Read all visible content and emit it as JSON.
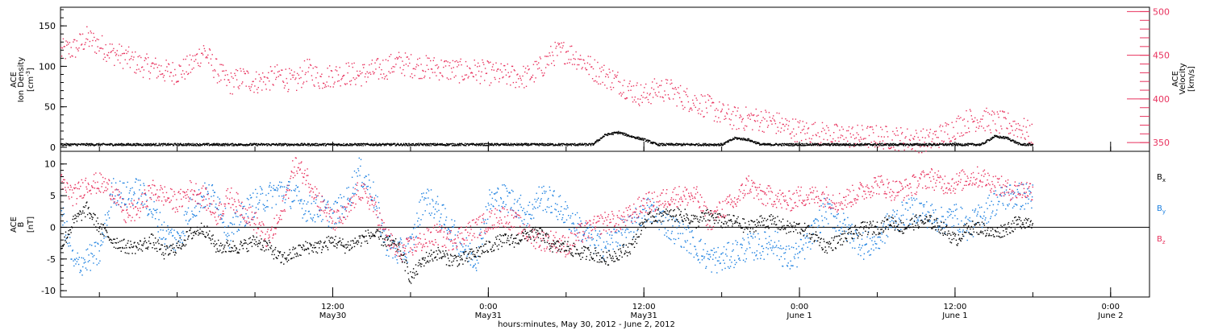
{
  "colors": {
    "black": "#000000",
    "pink": "#e8325e",
    "blue": "#1a7fe0"
  },
  "chart_data": [
    {
      "type": "scatter",
      "title": "",
      "ylabel": {
        "lines": [
          "ACE",
          "Ion Density"
        ],
        "units": "[cm",
        "units_sup": "-3",
        "units_end": "]"
      },
      "ylabel_right": {
        "lines": [
          "ACE",
          "Velocity"
        ],
        "units": "[km/s]"
      },
      "xlim": [
        -9,
        75
      ],
      "ylim": [
        -5,
        173
      ],
      "ylim_right": [
        340,
        505
      ],
      "yticks": [
        0,
        50,
        100,
        150
      ],
      "yticks_right": [
        350,
        400,
        450,
        500
      ],
      "series": [
        {
          "color": "pink",
          "axis": "right",
          "x": [
            -9,
            -8,
            -7,
            -6,
            -5,
            -4,
            -3,
            -2,
            -1,
            0,
            1,
            2,
            3,
            4,
            5,
            6,
            7,
            8,
            9,
            10,
            11,
            12,
            13,
            14,
            15,
            16,
            17,
            18,
            19,
            20,
            21,
            22,
            23,
            24,
            25,
            26,
            27,
            28,
            29,
            30,
            31,
            32,
            33,
            34,
            35,
            36,
            37,
            38,
            39,
            40,
            41,
            42,
            43,
            44,
            45,
            46,
            47,
            48,
            49,
            50,
            51,
            52,
            53,
            54,
            55,
            56,
            57,
            58,
            59,
            60,
            61,
            62,
            63,
            64,
            65,
            66
          ],
          "y": [
            455,
            458,
            470,
            462,
            453,
            448,
            440,
            437,
            432,
            431,
            438,
            456,
            433,
            418,
            425,
            420,
            423,
            428,
            418,
            434,
            424,
            428,
            430,
            428,
            432,
            436,
            442,
            439,
            437,
            436,
            434,
            432,
            433,
            430,
            428,
            426,
            426,
            436,
            452,
            455,
            446,
            435,
            427,
            420,
            410,
            404,
            412,
            410,
            402,
            397,
            391,
            383,
            378,
            378,
            377,
            374,
            368,
            364,
            362,
            360,
            358,
            358,
            357,
            357,
            356,
            355,
            353,
            353,
            360,
            368,
            376,
            378,
            374,
            372,
            368,
            358
          ],
          "spread": 14
        }
      ]
    },
    {
      "type": "scatter",
      "ylabel": {
        "lines": [
          "ACE",
          "B"
        ],
        "units": "[nT]"
      },
      "xlim": [
        -9,
        75
      ],
      "ylim": [
        -11,
        12
      ],
      "yticks": [
        -10,
        -5,
        0,
        5,
        10
      ],
      "zero_line": true,
      "legend": [
        "B",
        "B",
        "B"
      ],
      "legend_subscripts": [
        "x",
        "y",
        "z"
      ],
      "series": [
        {
          "color": "blue",
          "x": [
            -9,
            -8,
            -7,
            -6,
            -5,
            -4,
            -3,
            -2,
            -1,
            0,
            1,
            2,
            3,
            4,
            5,
            6,
            7,
            8,
            9,
            10,
            11,
            12,
            13,
            14,
            15,
            16,
            17,
            18,
            19,
            20,
            21,
            22,
            23,
            24,
            25,
            26,
            27,
            28,
            29,
            30,
            31,
            32,
            33,
            34,
            35,
            36,
            37,
            38,
            39,
            40,
            41,
            42,
            43,
            44,
            45,
            46,
            47,
            48,
            49,
            50,
            51,
            52,
            53,
            54,
            55,
            56,
            57,
            58,
            59,
            60,
            61,
            62,
            63,
            64,
            65,
            66
          ],
          "y": [
            3,
            -6,
            -5,
            -4,
            6,
            5,
            6,
            3,
            -1,
            -2,
            3,
            5,
            5,
            -1,
            2,
            4,
            5,
            6,
            5,
            3,
            3,
            2,
            4,
            9,
            6,
            -2,
            -4,
            -3,
            5,
            3,
            0,
            -3,
            -5,
            4,
            5,
            4,
            2,
            5,
            4,
            2,
            0,
            -2,
            -3,
            -1,
            0,
            3,
            2,
            0,
            -1,
            -3,
            -5,
            -5,
            -4,
            -3,
            -3,
            -2,
            -5,
            -4,
            -1,
            3,
            1,
            -1,
            -3,
            -2,
            1,
            2,
            3,
            2,
            1,
            2,
            0,
            2,
            4,
            5,
            5,
            5
          ],
          "spread": 2.2
        },
        {
          "color": "pink",
          "x": [
            -9,
            -8,
            -7,
            -6,
            -5,
            -4,
            -3,
            -2,
            -1,
            0,
            1,
            2,
            3,
            4,
            5,
            6,
            7,
            8,
            9,
            10,
            11,
            12,
            13,
            14,
            15,
            16,
            17,
            18,
            19,
            20,
            21,
            22,
            23,
            24,
            25,
            26,
            27,
            28,
            29,
            30,
            31,
            32,
            33,
            34,
            35,
            36,
            37,
            38,
            39,
            40,
            41,
            42,
            43,
            44,
            45,
            46,
            47,
            48,
            49,
            50,
            51,
            52,
            53,
            54,
            55,
            56,
            57,
            58,
            59,
            60,
            61,
            62,
            63,
            64,
            65,
            66
          ],
          "y": [
            7,
            5,
            7,
            7,
            6,
            2,
            3,
            6,
            5,
            4,
            6,
            5,
            2,
            5,
            3,
            1,
            -2,
            2,
            10,
            8,
            4,
            1,
            2,
            6,
            4,
            -1,
            -4,
            -3,
            -2,
            -1,
            -2,
            -1,
            0,
            1,
            2,
            1,
            -1,
            -2,
            -2,
            -3,
            -1,
            0,
            1,
            1,
            2,
            4,
            4,
            5,
            5,
            5,
            1,
            3,
            4,
            7,
            5,
            5,
            4,
            5,
            5,
            5,
            4,
            5,
            6,
            7,
            6,
            6,
            7,
            8,
            7,
            7,
            8,
            8,
            7,
            6,
            6,
            6
          ],
          "spread": 1.7
        },
        {
          "color": "black",
          "x": [
            -9,
            -8,
            -7,
            -6,
            -5,
            -4,
            -3,
            -2,
            -1,
            0,
            1,
            2,
            3,
            4,
            5,
            6,
            7,
            8,
            9,
            10,
            11,
            12,
            13,
            14,
            15,
            16,
            17,
            18,
            19,
            20,
            21,
            22,
            23,
            24,
            25,
            26,
            27,
            28,
            29,
            30,
            31,
            32,
            33,
            34,
            35,
            36,
            37,
            38,
            39,
            40,
            41,
            42,
            43,
            44,
            45,
            46,
            47,
            48,
            49,
            50,
            51,
            52,
            53,
            54,
            55,
            56,
            57,
            58,
            59,
            60,
            61,
            62,
            63,
            64,
            65,
            66
          ],
          "y": [
            -3,
            1,
            3,
            0,
            -2,
            -3,
            -3,
            -2,
            -4,
            -3,
            -1,
            0,
            -3,
            -3,
            -3,
            -2,
            -3,
            -5,
            -4,
            -3,
            -3,
            -2,
            -3,
            -2,
            -1,
            -2,
            -3,
            -8,
            -5,
            -4,
            -5,
            -5,
            -4,
            -3,
            -2,
            -2,
            -1,
            -1,
            -3,
            -3,
            -4,
            -4,
            -5,
            -4,
            -3,
            1,
            2,
            2,
            2,
            1,
            2,
            1,
            1,
            0,
            1,
            1,
            0,
            0,
            -1,
            -3,
            -2,
            -1,
            0,
            0,
            1,
            0,
            1,
            1,
            0,
            -2,
            0,
            0,
            -1,
            0,
            1,
            1
          ],
          "spread": 1.1
        }
      ]
    }
  ],
  "x_axis": {
    "ticks": [
      {
        "x": 12,
        "time": "12:00",
        "date": "May30"
      },
      {
        "x": 24,
        "time": "0:00",
        "date": "May31"
      },
      {
        "x": 36,
        "time": "12:00",
        "date": "May31"
      },
      {
        "x": 48,
        "time": "0:00",
        "date": "June 1"
      },
      {
        "x": 60,
        "time": "12:00",
        "date": "June 1"
      },
      {
        "x": 72,
        "time": "0:00",
        "date": "June 2"
      }
    ],
    "label": "hours:minutes, May 30, 2012 - June  2, 2012"
  }
}
